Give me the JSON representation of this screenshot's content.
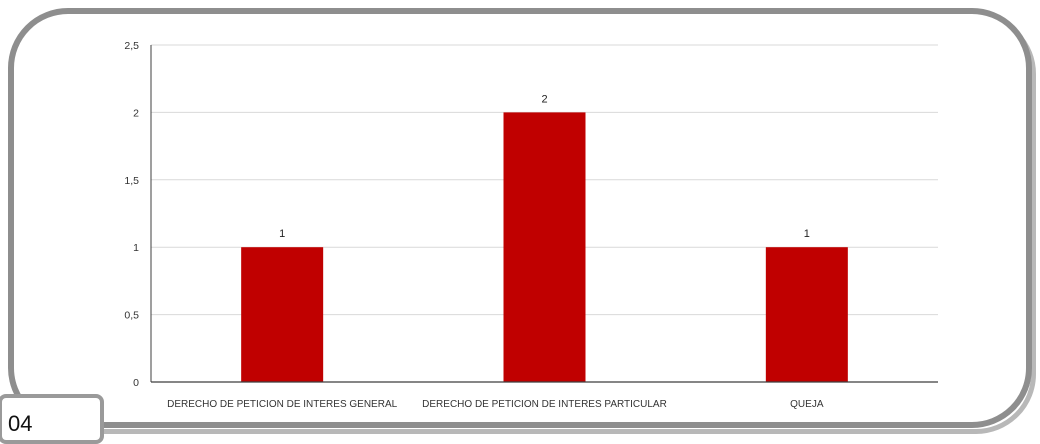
{
  "page": {
    "number": "04"
  },
  "colors": {
    "bar": "#C00000",
    "grid": "#d9d9d9",
    "axis": "#3f3f3f"
  },
  "chart_data": {
    "type": "bar",
    "categories": [
      "DERECHO DE PETICION DE INTERES GENERAL",
      "DERECHO DE PETICION DE INTERES PARTICULAR",
      "QUEJA"
    ],
    "values": [
      1,
      2,
      1
    ],
    "data_labels": [
      "1",
      "2",
      "1"
    ],
    "yticks": [
      0,
      0.5,
      1,
      1.5,
      2,
      2.5
    ],
    "ytick_labels": [
      "0",
      "0,5",
      "1",
      "1,5",
      "2",
      "2,5"
    ],
    "ylim": [
      0,
      2.5
    ],
    "grid": true,
    "title": "",
    "xlabel": "",
    "ylabel": ""
  }
}
